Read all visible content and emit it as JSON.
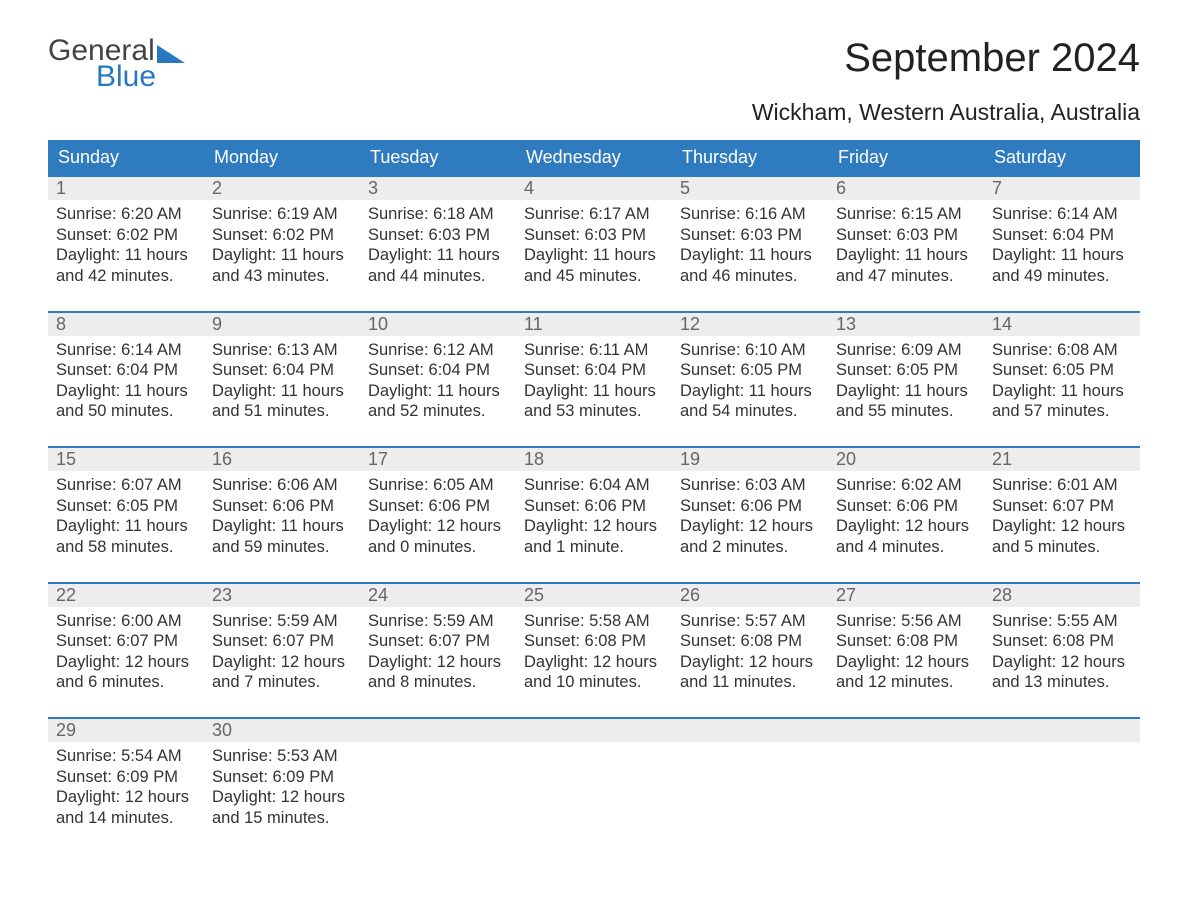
{
  "brand": {
    "word1": "General",
    "word2": "Blue",
    "accent_color": "#2878c0"
  },
  "title": "September 2024",
  "location": "Wickham, Western Australia, Australia",
  "colors": {
    "header_bg": "#2f7bbf",
    "header_text": "#ffffff",
    "daynum_bg": "#ededed",
    "daynum_text": "#666666",
    "body_text": "#333333",
    "week_border": "#2f7bbf",
    "page_bg": "#ffffff"
  },
  "typography": {
    "month_title_fontsize": 40,
    "location_fontsize": 23,
    "dow_fontsize": 18,
    "daynum_fontsize": 18,
    "cell_fontsize": 16.5
  },
  "layout": {
    "columns": 7,
    "rows": 5
  },
  "days_of_week": [
    "Sunday",
    "Monday",
    "Tuesday",
    "Wednesday",
    "Thursday",
    "Friday",
    "Saturday"
  ],
  "labels": {
    "sunrise": "Sunrise:",
    "sunset": "Sunset:",
    "daylight": "Daylight:"
  },
  "weeks": [
    [
      {
        "n": "1",
        "sunrise": "6:20 AM",
        "sunset": "6:02 PM",
        "daylight": "11 hours and 42 minutes."
      },
      {
        "n": "2",
        "sunrise": "6:19 AM",
        "sunset": "6:02 PM",
        "daylight": "11 hours and 43 minutes."
      },
      {
        "n": "3",
        "sunrise": "6:18 AM",
        "sunset": "6:03 PM",
        "daylight": "11 hours and 44 minutes."
      },
      {
        "n": "4",
        "sunrise": "6:17 AM",
        "sunset": "6:03 PM",
        "daylight": "11 hours and 45 minutes."
      },
      {
        "n": "5",
        "sunrise": "6:16 AM",
        "sunset": "6:03 PM",
        "daylight": "11 hours and 46 minutes."
      },
      {
        "n": "6",
        "sunrise": "6:15 AM",
        "sunset": "6:03 PM",
        "daylight": "11 hours and 47 minutes."
      },
      {
        "n": "7",
        "sunrise": "6:14 AM",
        "sunset": "6:04 PM",
        "daylight": "11 hours and 49 minutes."
      }
    ],
    [
      {
        "n": "8",
        "sunrise": "6:14 AM",
        "sunset": "6:04 PM",
        "daylight": "11 hours and 50 minutes."
      },
      {
        "n": "9",
        "sunrise": "6:13 AM",
        "sunset": "6:04 PM",
        "daylight": "11 hours and 51 minutes."
      },
      {
        "n": "10",
        "sunrise": "6:12 AM",
        "sunset": "6:04 PM",
        "daylight": "11 hours and 52 minutes."
      },
      {
        "n": "11",
        "sunrise": "6:11 AM",
        "sunset": "6:04 PM",
        "daylight": "11 hours and 53 minutes."
      },
      {
        "n": "12",
        "sunrise": "6:10 AM",
        "sunset": "6:05 PM",
        "daylight": "11 hours and 54 minutes."
      },
      {
        "n": "13",
        "sunrise": "6:09 AM",
        "sunset": "6:05 PM",
        "daylight": "11 hours and 55 minutes."
      },
      {
        "n": "14",
        "sunrise": "6:08 AM",
        "sunset": "6:05 PM",
        "daylight": "11 hours and 57 minutes."
      }
    ],
    [
      {
        "n": "15",
        "sunrise": "6:07 AM",
        "sunset": "6:05 PM",
        "daylight": "11 hours and 58 minutes."
      },
      {
        "n": "16",
        "sunrise": "6:06 AM",
        "sunset": "6:06 PM",
        "daylight": "11 hours and 59 minutes."
      },
      {
        "n": "17",
        "sunrise": "6:05 AM",
        "sunset": "6:06 PM",
        "daylight": "12 hours and 0 minutes."
      },
      {
        "n": "18",
        "sunrise": "6:04 AM",
        "sunset": "6:06 PM",
        "daylight": "12 hours and 1 minute."
      },
      {
        "n": "19",
        "sunrise": "6:03 AM",
        "sunset": "6:06 PM",
        "daylight": "12 hours and 2 minutes."
      },
      {
        "n": "20",
        "sunrise": "6:02 AM",
        "sunset": "6:06 PM",
        "daylight": "12 hours and 4 minutes."
      },
      {
        "n": "21",
        "sunrise": "6:01 AM",
        "sunset": "6:07 PM",
        "daylight": "12 hours and 5 minutes."
      }
    ],
    [
      {
        "n": "22",
        "sunrise": "6:00 AM",
        "sunset": "6:07 PM",
        "daylight": "12 hours and 6 minutes."
      },
      {
        "n": "23",
        "sunrise": "5:59 AM",
        "sunset": "6:07 PM",
        "daylight": "12 hours and 7 minutes."
      },
      {
        "n": "24",
        "sunrise": "5:59 AM",
        "sunset": "6:07 PM",
        "daylight": "12 hours and 8 minutes."
      },
      {
        "n": "25",
        "sunrise": "5:58 AM",
        "sunset": "6:08 PM",
        "daylight": "12 hours and 10 minutes."
      },
      {
        "n": "26",
        "sunrise": "5:57 AM",
        "sunset": "6:08 PM",
        "daylight": "12 hours and 11 minutes."
      },
      {
        "n": "27",
        "sunrise": "5:56 AM",
        "sunset": "6:08 PM",
        "daylight": "12 hours and 12 minutes."
      },
      {
        "n": "28",
        "sunrise": "5:55 AM",
        "sunset": "6:08 PM",
        "daylight": "12 hours and 13 minutes."
      }
    ],
    [
      {
        "n": "29",
        "sunrise": "5:54 AM",
        "sunset": "6:09 PM",
        "daylight": "12 hours and 14 minutes."
      },
      {
        "n": "30",
        "sunrise": "5:53 AM",
        "sunset": "6:09 PM",
        "daylight": "12 hours and 15 minutes."
      },
      null,
      null,
      null,
      null,
      null
    ]
  ]
}
